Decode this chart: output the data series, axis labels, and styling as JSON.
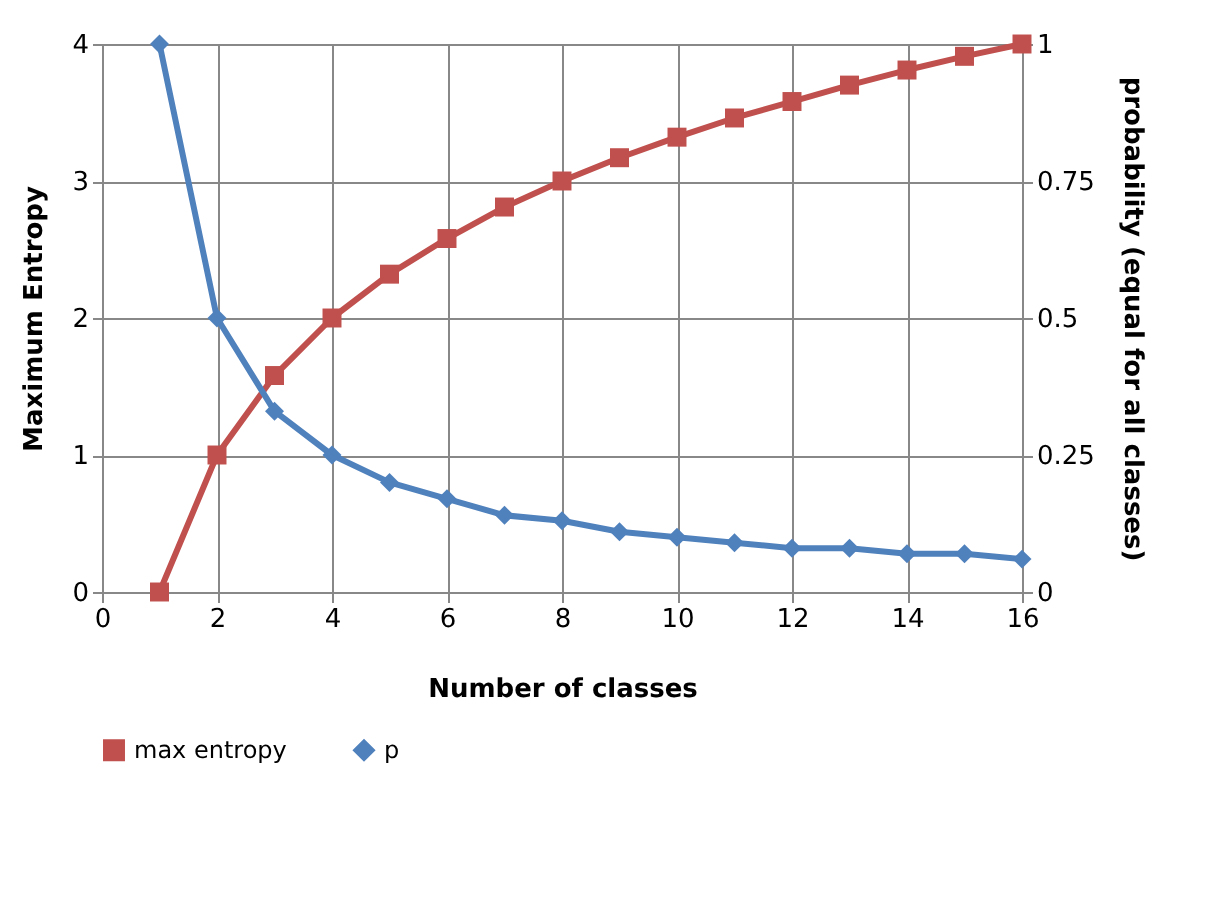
{
  "chart_data": {
    "type": "line",
    "xlabel": "Number of classes",
    "ylabel": "Maximum Entropy",
    "y2label": "probability (equal for all classes)",
    "x": [
      1,
      2,
      3,
      4,
      5,
      6,
      7,
      8,
      9,
      10,
      11,
      12,
      13,
      14,
      15,
      16
    ],
    "series": [
      {
        "name": "max entropy",
        "color": "#c0504d",
        "marker": "square",
        "values": [
          0,
          1,
          1.58,
          2,
          2.32,
          2.58,
          2.81,
          3,
          3.17,
          3.32,
          3.46,
          3.58,
          3.7,
          3.81,
          3.91,
          4
        ]
      },
      {
        "name": "p",
        "color": "#4f81bd",
        "marker": "diamond",
        "axis": "y2",
        "values": [
          1,
          0.5,
          0.33,
          0.25,
          0.2,
          0.17,
          0.14,
          0.13,
          0.11,
          0.1,
          0.09,
          0.08,
          0.08,
          0.07,
          0.07,
          0.06
        ]
      }
    ],
    "xlim": [
      0,
      16
    ],
    "xticks": [
      0,
      2,
      4,
      6,
      8,
      10,
      12,
      14,
      16
    ],
    "ylim": [
      0,
      4
    ],
    "yticks": [
      0,
      1,
      2,
      3,
      4
    ],
    "y2lim": [
      0,
      1
    ],
    "y2ticks": [
      0,
      0.25,
      0.5,
      0.75,
      1
    ],
    "grid": true,
    "legend": "bottom"
  }
}
